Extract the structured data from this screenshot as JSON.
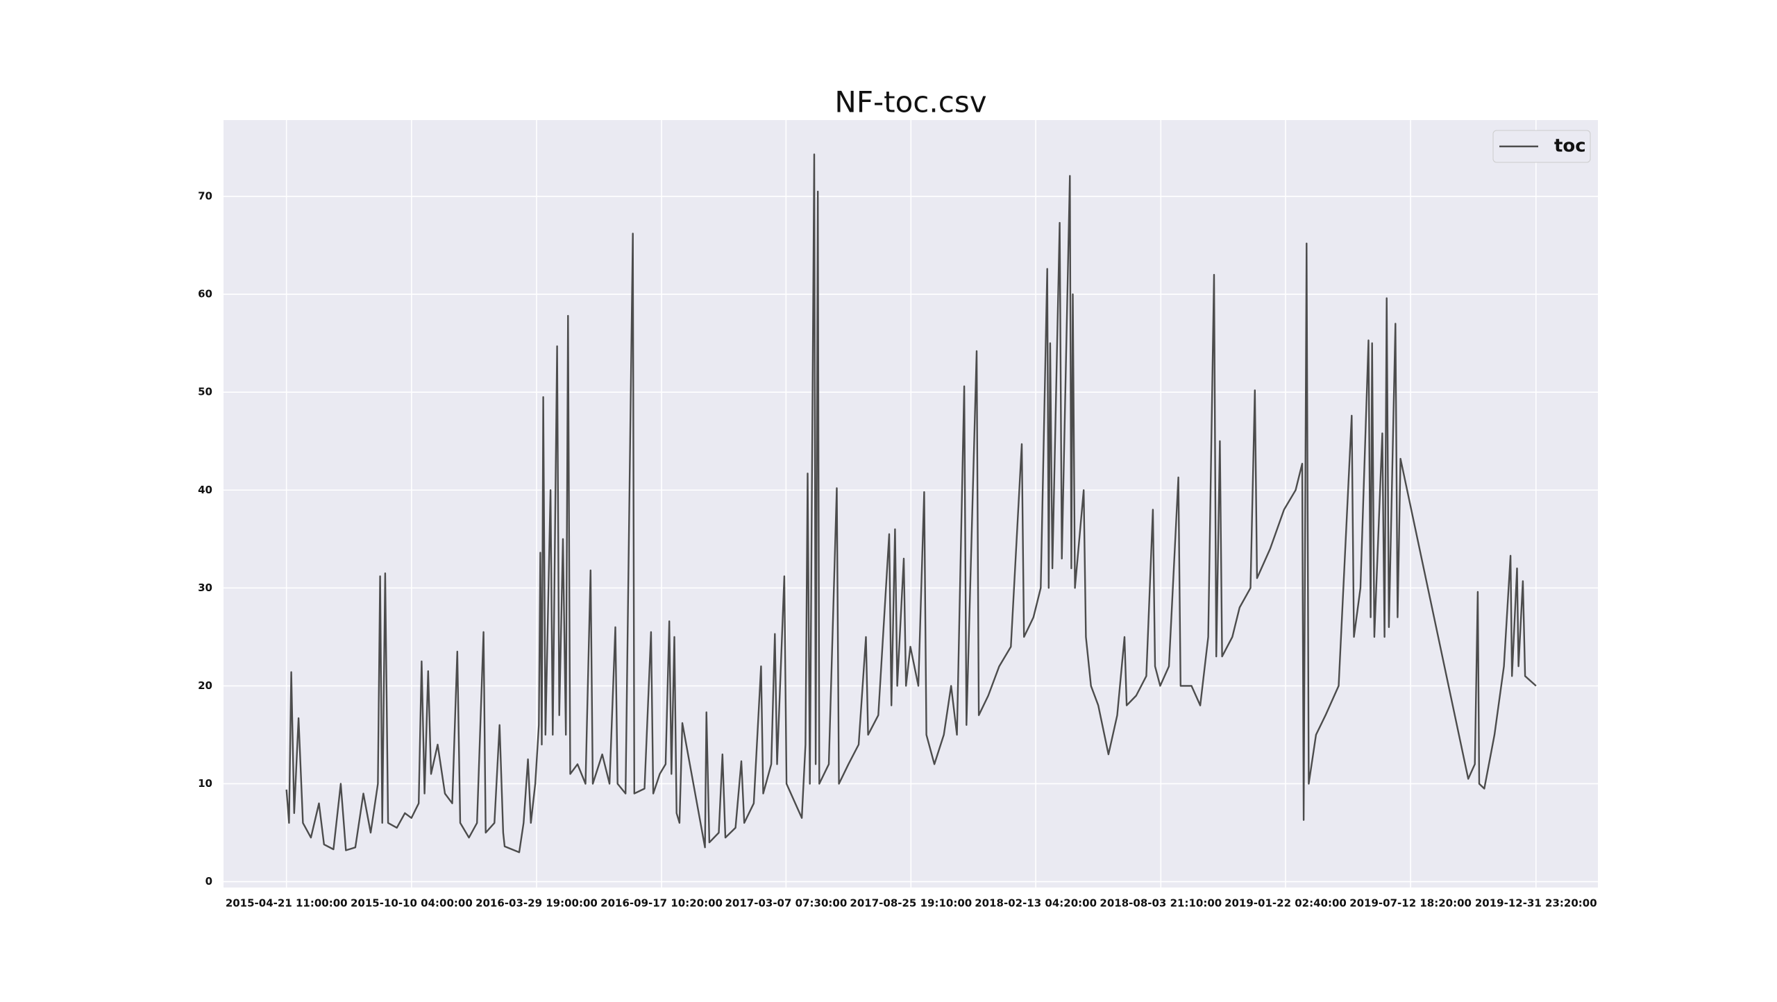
{
  "chart_data": {
    "type": "line",
    "title": "NF-toc.csv",
    "x": [
      "2015-04-21 11:00:00",
      "2015-04-25",
      "2015-04-28",
      "2015-05-02",
      "2015-05-08",
      "2015-05-14",
      "2015-05-25",
      "2015-06-05",
      "2015-06-12",
      "2015-06-25",
      "2015-07-05",
      "2015-07-12",
      "2015-07-25",
      "2015-08-05",
      "2015-08-15",
      "2015-08-25",
      "2015-08-28",
      "2015-08-31",
      "2015-09-04",
      "2015-09-08",
      "2015-09-20",
      "2015-10-01",
      "2015-10-10",
      "2015-10-20",
      "2015-10-24",
      "2015-10-28",
      "2015-11-02",
      "2015-11-06",
      "2015-11-15",
      "2015-11-25",
      "2015-12-05",
      "2015-12-12",
      "2015-12-16",
      "2015-12-28",
      "2016-01-08",
      "2016-01-17",
      "2016-01-20",
      "2016-02-01",
      "2016-02-08",
      "2016-02-13",
      "2016-02-15",
      "2016-03-06",
      "2016-03-12",
      "2016-03-18",
      "2016-03-22",
      "2016-03-28",
      "2016-04-02",
      "2016-04-04",
      "2016-04-06",
      "2016-04-08",
      "2016-04-11",
      "2016-04-18",
      "2016-04-21",
      "2016-04-27",
      "2016-04-30",
      "2016-05-05",
      "2016-05-09",
      "2016-05-12",
      "2016-05-15",
      "2016-05-25",
      "2016-06-05",
      "2016-06-12",
      "2016-06-15",
      "2016-06-28",
      "2016-07-08",
      "2016-07-16",
      "2016-07-19",
      "2016-07-30",
      "2016-08-09",
      "2016-08-11",
      "2016-08-25",
      "2016-09-03",
      "2016-09-06",
      "2016-09-15",
      "2016-09-23",
      "2016-09-28",
      "2016-10-01",
      "2016-10-05",
      "2016-10-08",
      "2016-10-12",
      "2016-10-16",
      "2016-11-16",
      "2016-11-18",
      "2016-11-22",
      "2016-12-05",
      "2016-12-10",
      "2016-12-14",
      "2016-12-28",
      "2017-01-05",
      "2017-01-09",
      "2017-01-22",
      "2017-02-01",
      "2017-02-04",
      "2017-02-15",
      "2017-02-20",
      "2017-02-23",
      "2017-03-05",
      "2017-03-08",
      "2017-03-20",
      "2017-03-29",
      "2017-04-03",
      "2017-04-06",
      "2017-04-09",
      "2017-04-15",
      "2017-04-17",
      "2017-04-20",
      "2017-04-22",
      "2017-05-05",
      "2017-05-16",
      "2017-05-19",
      "2017-06-01",
      "2017-06-15",
      "2017-06-25",
      "2017-06-28",
      "2017-07-12",
      "2017-07-27",
      "2017-07-30",
      "2017-08-04",
      "2017-08-07",
      "2017-08-16",
      "2017-08-19",
      "2017-08-25",
      "2017-09-05",
      "2017-09-13",
      "2017-09-16",
      "2017-09-27",
      "2017-10-10",
      "2017-10-20",
      "2017-10-28",
      "2017-11-07",
      "2017-11-10",
      "2017-11-24",
      "2017-11-27",
      "2017-12-10",
      "2017-12-25",
      "2018-01-10",
      "2018-01-25",
      "2018-01-28",
      "2018-02-10",
      "2018-02-20",
      "2018-03-01",
      "2018-03-03",
      "2018-03-05",
      "2018-03-08",
      "2018-03-18",
      "2018-03-21",
      "2018-04-01",
      "2018-04-03",
      "2018-04-05",
      "2018-04-08",
      "2018-04-20",
      "2018-04-23",
      "2018-04-30",
      "2018-05-10",
      "2018-05-24",
      "2018-06-05",
      "2018-06-15",
      "2018-06-18",
      "2018-07-01",
      "2018-07-15",
      "2018-07-24",
      "2018-07-27",
      "2018-08-03",
      "2018-08-15",
      "2018-08-28",
      "2018-08-31",
      "2018-09-15",
      "2018-09-27",
      "2018-10-08",
      "2018-10-16",
      "2018-10-19",
      "2018-10-24",
      "2018-10-27",
      "2018-11-10",
      "2018-11-20",
      "2018-12-05",
      "2018-12-11",
      "2018-12-14",
      "2019-01-01",
      "2019-01-20",
      "2019-02-05",
      "2019-02-14",
      "2019-02-16",
      "2019-02-20",
      "2019-02-23",
      "2019-03-05",
      "2019-03-18",
      "2019-04-05",
      "2019-04-23",
      "2019-04-26",
      "2019-05-05",
      "2019-05-16",
      "2019-05-19",
      "2019-05-21",
      "2019-05-24",
      "2019-06-04",
      "2019-06-07",
      "2019-06-10",
      "2019-06-13",
      "2019-06-22",
      "2019-06-25",
      "2019-06-29",
      "2019-09-30",
      "2019-10-09",
      "2019-10-13",
      "2019-10-15",
      "2019-10-22",
      "2019-11-05",
      "2019-11-18",
      "2019-11-27",
      "2019-11-29",
      "2019-12-06",
      "2019-12-08",
      "2019-12-14",
      "2019-12-17",
      "2019-12-31 23:20:00"
    ],
    "series": [
      {
        "name": "toc",
        "color": "#4c4c4c",
        "values": [
          9.4,
          6,
          21.4,
          7,
          16.7,
          6,
          4.5,
          8,
          3.8,
          3.3,
          10,
          3.2,
          3.5,
          9,
          5,
          10,
          31.2,
          6,
          31.5,
          6,
          5.5,
          7,
          6.5,
          8,
          22.5,
          9,
          21.5,
          11,
          14,
          9,
          8,
          23.5,
          6,
          4.5,
          6,
          25.5,
          5,
          6,
          16,
          5,
          3.6,
          3.0,
          6,
          12.5,
          6,
          10,
          16,
          33.6,
          14,
          49.5,
          15,
          40,
          15,
          54.7,
          17,
          35,
          15,
          57.8,
          11,
          12,
          10,
          31.8,
          10,
          13,
          10,
          26,
          10,
          9,
          66.2,
          9,
          9.5,
          25.5,
          9,
          11,
          12,
          26.6,
          11,
          25,
          7,
          6,
          16.2,
          3.5,
          17.3,
          4,
          5,
          13,
          4.5,
          5.5,
          12.3,
          6,
          8,
          22,
          9,
          12,
          25.3,
          12,
          31.2,
          10,
          8,
          6.5,
          14,
          41.7,
          10,
          74.3,
          12,
          70.5,
          10,
          12,
          40.2,
          10,
          12,
          14,
          25,
          15,
          17,
          35.5,
          18,
          36,
          20,
          33,
          20,
          24,
          20,
          39.8,
          15,
          12,
          15,
          20,
          15,
          50.6,
          16,
          54.2,
          17,
          19,
          22,
          24,
          44.7,
          25,
          27,
          30,
          62.6,
          30,
          55,
          32,
          67.3,
          33,
          72.1,
          32,
          60,
          30,
          40,
          25,
          20,
          18,
          13,
          17,
          25,
          18,
          19,
          21,
          38,
          22,
          20,
          22,
          41.3,
          20,
          20,
          18,
          25,
          62,
          23,
          45,
          23,
          25,
          28,
          30,
          50.2,
          31,
          34,
          38,
          40,
          42.7,
          6.3,
          65.2,
          10,
          15,
          17,
          20,
          47.6,
          25,
          30,
          55.3,
          27,
          55,
          25,
          45.8,
          25,
          59.6,
          26,
          57,
          27,
          43.2,
          10.5,
          12,
          29.6,
          10,
          9.5,
          15,
          22,
          33.3,
          21,
          32,
          22,
          30.7,
          21,
          20
        ]
      }
    ],
    "xlim": [
      "2015-01-25",
      "2020-03-26"
    ],
    "xticks": [
      "2015-04-21 11:00:00",
      "2015-10-10 04:00:00",
      "2016-03-29 19:00:00",
      "2016-09-17 10:20:00",
      "2017-03-07 07:30:00",
      "2017-08-25 19:10:00",
      "2018-02-13 04:20:00",
      "2018-08-03 21:10:00",
      "2019-01-22 02:40:00",
      "2019-07-12 18:20:00",
      "2019-12-31 23:20:00"
    ],
    "ylim": [
      -0.6,
      77.8
    ],
    "yticks": [
      0,
      10,
      20,
      30,
      40,
      50,
      60,
      70
    ],
    "grid": true,
    "legend": "upper right"
  }
}
